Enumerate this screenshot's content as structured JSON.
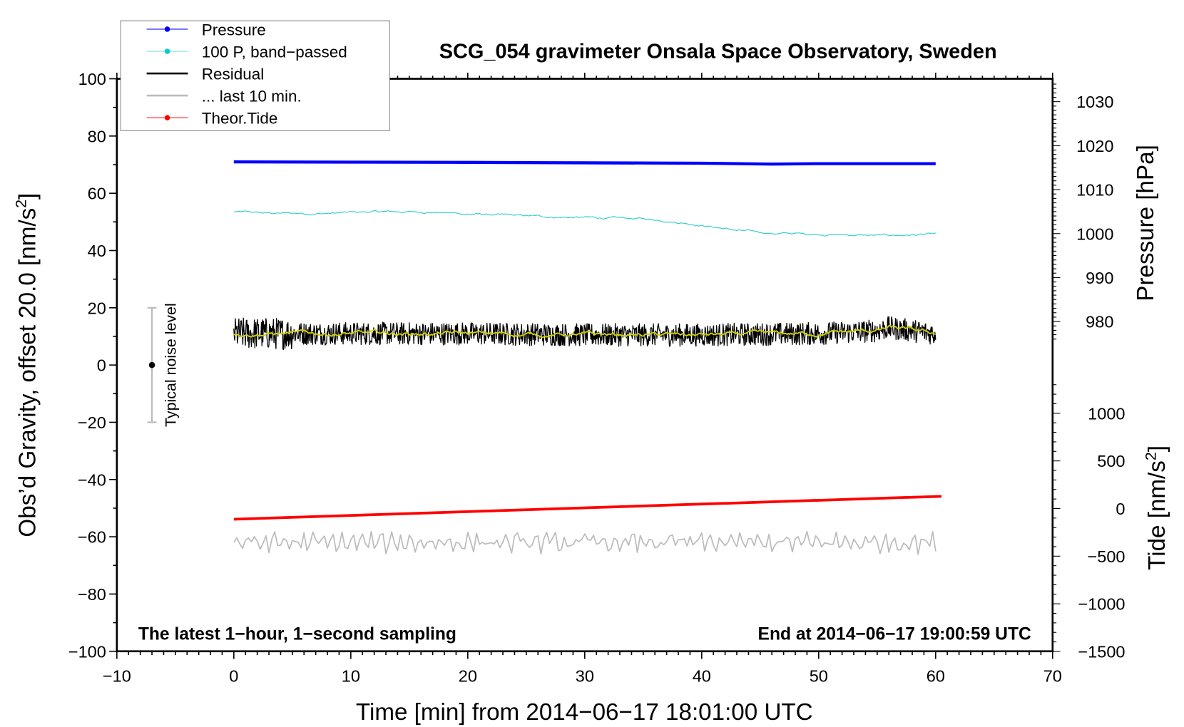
{
  "chart_data": {
    "type": "line",
    "title": "SCG_054 gravimeter Onsala Space Observatory, Sweden",
    "xlabel": "Time [min] from 2014−06−17 18:01:00 UTC",
    "ylabel": "Obs’d Gravity, offset 20.0 [nm/s²]",
    "ylabel_main": "Obs’d Gravity, offset 20.0 [nm/s",
    "ylabel_sup": "2",
    "ylabel_end": "]",
    "y2label": "Pressure [hPa]",
    "y3label_main": "Tide [nm/s",
    "y3label_sup": "2",
    "y3label_end": "]",
    "xlim": [
      -10,
      70
    ],
    "ylim": [
      -100,
      100
    ],
    "y2lim_ticks": [
      980,
      1030
    ],
    "y3lim": [
      -1500,
      1000
    ],
    "xticks": [
      "−10",
      "0",
      "10",
      "20",
      "30",
      "40",
      "50",
      "60",
      "70"
    ],
    "xtick_values": [
      -10,
      0,
      10,
      20,
      30,
      40,
      50,
      60,
      70
    ],
    "yticks": [
      "100",
      "80",
      "60",
      "40",
      "20",
      "0",
      "−20",
      "−40",
      "−60",
      "−80",
      "−100"
    ],
    "ytick_values": [
      100,
      80,
      60,
      40,
      20,
      0,
      -20,
      -40,
      -60,
      -80,
      -100
    ],
    "y2ticks": [
      "1030",
      "1020",
      "1010",
      "1000",
      "990",
      "980"
    ],
    "y2tick_values": [
      1030,
      1020,
      1010,
      1000,
      990,
      980
    ],
    "y3ticks": [
      "1000",
      "500",
      "0",
      "−500",
      "−1000",
      "−1500"
    ],
    "y3tick_values": [
      1000,
      500,
      0,
      -500,
      -1000,
      -1500
    ],
    "annotation_left": "The latest 1−hour, 1−second sampling",
    "annotation_right": "End at 2014−06−17 19:00:59 UTC",
    "noise_label": "Typical noise level",
    "noise_bar": {
      "x": -7,
      "center": 0,
      "low": -20,
      "high": 20
    },
    "legend": {
      "placement": "top-left",
      "entries": [
        {
          "label": "Pressure",
          "color": "#0000ff"
        },
        {
          "label": "100 P, band−passed",
          "color": "#00cccc"
        },
        {
          "label": "Residual",
          "color": "#000000"
        },
        {
          "label": "... last 10 min.",
          "color": "#bbbbbb"
        },
        {
          "label": "Theor.Tide",
          "color": "#ff0000"
        }
      ]
    },
    "series": [
      {
        "name": "Pressure",
        "axis": "pressure_hPa",
        "color": "#0000ff",
        "points": [
          [
            0,
            1016.3
          ],
          [
            10,
            1016.25
          ],
          [
            20,
            1016.2
          ],
          [
            30,
            1016.1
          ],
          [
            40,
            1016.0
          ],
          [
            46,
            1015.8
          ],
          [
            50,
            1015.9
          ],
          [
            60,
            1015.9
          ]
        ]
      },
      {
        "name": "100 P, band-passed",
        "axis": "gravity",
        "color": "#22cccc",
        "points": [
          [
            0,
            53.5
          ],
          [
            3,
            53
          ],
          [
            8,
            53
          ],
          [
            12,
            53.5
          ],
          [
            17,
            53.5
          ],
          [
            20,
            52.8
          ],
          [
            25,
            52
          ],
          [
            30,
            51.5
          ],
          [
            35,
            51
          ],
          [
            37,
            50.5
          ],
          [
            40,
            49
          ],
          [
            43,
            47
          ],
          [
            46,
            46
          ],
          [
            50,
            45.8
          ],
          [
            55,
            45.2
          ],
          [
            60,
            45.6
          ]
        ],
        "noise_amplitude": 0.4
      },
      {
        "name": "Residual",
        "axis": "gravity",
        "color": "#000000",
        "points": [
          [
            0,
            11
          ],
          [
            10,
            11
          ],
          [
            20,
            11
          ],
          [
            30,
            10.5
          ],
          [
            40,
            10.5
          ],
          [
            50,
            11
          ],
          [
            55,
            12
          ],
          [
            56,
            13
          ],
          [
            58,
            12
          ],
          [
            60,
            11
          ]
        ],
        "noise_amplitude": 4
      },
      {
        "name": "Residual smoothed",
        "axis": "gravity",
        "color": "#cccc00",
        "points": [
          [
            0,
            11
          ],
          [
            10,
            11
          ],
          [
            20,
            11
          ],
          [
            30,
            10.5
          ],
          [
            40,
            10.5
          ],
          [
            50,
            11
          ],
          [
            55,
            12
          ],
          [
            56,
            13
          ],
          [
            58,
            12
          ],
          [
            60,
            11
          ]
        ],
        "noise_amplitude": 0.8
      },
      {
        "name": "... last 10 min.",
        "axis": "gravity",
        "color": "#bbbbbb",
        "points": [
          [
            0,
            -62
          ],
          [
            60,
            -62
          ]
        ],
        "noise_amplitude": 3.2
      },
      {
        "name": "Theor.Tide",
        "axis": "tide",
        "color": "#ff0000",
        "points": [
          [
            0,
            -112
          ],
          [
            60.5,
            128
          ]
        ]
      }
    ]
  }
}
